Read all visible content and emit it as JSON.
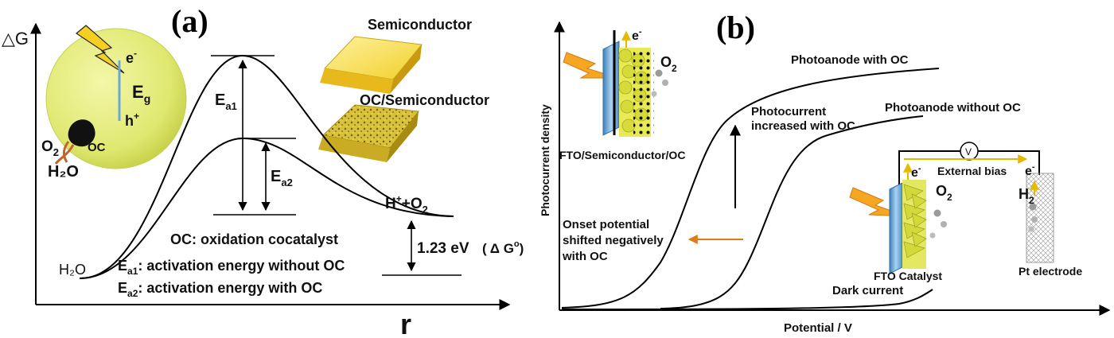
{
  "panel_a": {
    "label": "(a)",
    "y_axis": "△G",
    "x_axis": "r",
    "electron": "e",
    "electron_sup": "-",
    "hole": "h",
    "hole_sup": "+",
    "eg_main": "E",
    "eg_sub": "g",
    "o2_main": "O",
    "o2_sub": "2",
    "oc_small": "OC",
    "h2o_left": "H₂O",
    "semiconductor": "Semiconductor",
    "oc_semiconductor": "OC/Semiconductor",
    "ea1_main": "E",
    "ea1_sub": "a1",
    "ea2_main": "E",
    "ea2_sub": "a2",
    "h2o_curve": "H₂O",
    "products_main": "H",
    "products_sup": "+",
    "products_rest": "+O",
    "products_sub": "2",
    "energy_value": "1.23 eV",
    "dg_label": "( Δ G",
    "dg_sup": "o",
    "dg_close": ")",
    "legend_oc": "OC: oxidation cocatalyst",
    "legend_ea1_desc": ": activation energy without OC",
    "legend_ea2_desc": ": activation energy with OC"
  },
  "panel_b": {
    "label": "(b)",
    "y_axis": "Photocurrent density",
    "x_axis": "Potential / V",
    "electron": "e",
    "electron_sup": "-",
    "o2_main": "O",
    "o2_sub": "2",
    "fto_semi_oc": "FTO/Semiconductor/OC",
    "photoanode_with": "Photoanode with OC",
    "photoanode_without": "Photoanode without OC",
    "photocurrent_line1": "Photocurrent",
    "photocurrent_line2": "increased with OC",
    "onset_line1": "Onset potential",
    "onset_line2": "shifted negatively",
    "onset_line3": "with OC",
    "external_bias": "External bias",
    "voltmeter": "V",
    "h2_main": "H",
    "h2_sub": "2",
    "fto_catalyst": "FTO Catalyst",
    "pt_electrode": "Pt electrode",
    "dark_current": "Dark current"
  },
  "colors": {
    "sphere": "#dfe870",
    "crystal": "#f0cf2a",
    "lightning": "#f5d020",
    "arrow_orange": "#e07b1a",
    "fto_blue": "#6aa8d8",
    "bias_yellow": "#e6b800"
  }
}
